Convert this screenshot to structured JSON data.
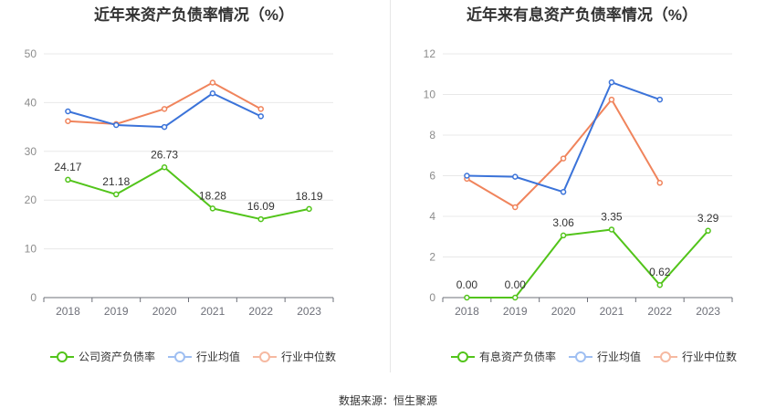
{
  "source_note": "数据来源：恒生聚源",
  "chart_data": [
    {
      "type": "line",
      "title": "近年来资产负债率情况（%）",
      "categories": [
        "2018",
        "2019",
        "2020",
        "2021",
        "2022",
        "2023"
      ],
      "ylim": [
        0,
        50
      ],
      "yticks": [
        0,
        10,
        20,
        30,
        40,
        50
      ],
      "grid": true,
      "legend_position": "bottom",
      "series": [
        {
          "name": "公司资产负债率",
          "color": "#52c41a",
          "values": [
            24.17,
            21.18,
            26.73,
            18.28,
            16.09,
            18.19
          ],
          "labels": [
            "24.17",
            "21.18",
            "26.73",
            "18.28",
            "16.09",
            "18.19"
          ]
        },
        {
          "name": "行业均值",
          "color": "#3b73d9",
          "values": [
            38.2,
            35.4,
            35.0,
            41.9,
            37.2,
            null
          ]
        },
        {
          "name": "行业中位数",
          "color": "#f0845c",
          "values": [
            36.2,
            35.6,
            38.7,
            44.1,
            38.7,
            null
          ]
        }
      ]
    },
    {
      "type": "line",
      "title": "近年来有息资产负债率情况（%）",
      "categories": [
        "2018",
        "2019",
        "2020",
        "2021",
        "2022",
        "2023"
      ],
      "ylim": [
        0,
        12
      ],
      "yticks": [
        0,
        2,
        4,
        6,
        8,
        10,
        12
      ],
      "grid": true,
      "legend_position": "bottom",
      "series": [
        {
          "name": "有息资产负债率",
          "color": "#52c41a",
          "values": [
            0.0,
            0.0,
            3.06,
            3.35,
            0.62,
            3.29
          ],
          "labels": [
            "0.00",
            "0.00",
            "3.06",
            "3.35",
            "0.62",
            "3.29"
          ]
        },
        {
          "name": "行业均值",
          "color": "#3b73d9",
          "values": [
            6.0,
            5.95,
            5.2,
            10.6,
            9.75,
            null
          ]
        },
        {
          "name": "行业中位数",
          "color": "#f0845c",
          "values": [
            5.85,
            4.45,
            6.85,
            9.75,
            5.65,
            null
          ]
        }
      ]
    }
  ]
}
